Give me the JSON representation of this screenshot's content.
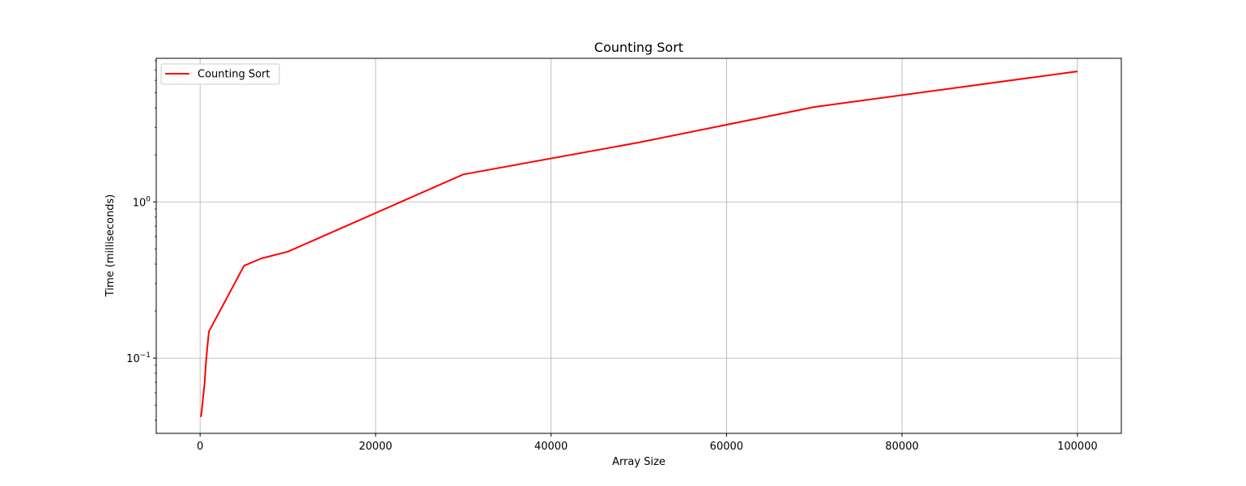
{
  "chart_data": {
    "type": "line",
    "title": "Counting Sort",
    "xlabel": "Array Size",
    "ylabel": "Time (milliseconds)",
    "xlim": [
      -5000,
      105000
    ],
    "ylim": [
      0.033,
      8.3
    ],
    "yscale": "log",
    "grid": true,
    "legend": "upper-left",
    "color": "#ff0000",
    "x_ticks": [
      {
        "value": 0,
        "label": "0"
      },
      {
        "value": 20000,
        "label": "20000"
      },
      {
        "value": 40000,
        "label": "40000"
      },
      {
        "value": 60000,
        "label": "60000"
      },
      {
        "value": 80000,
        "label": "80000"
      },
      {
        "value": 100000,
        "label": "100000"
      }
    ],
    "y_ticks": [
      {
        "value": 0.1,
        "base": "10",
        "exp": "−1"
      },
      {
        "value": 1,
        "base": "10",
        "exp": "0"
      }
    ],
    "series": [
      {
        "name": "Counting Sort",
        "x": [
          100,
          500,
          700,
          1000,
          5000,
          7000,
          10000,
          30000,
          50000,
          70000,
          100000
        ],
        "y": [
          0.042,
          0.068,
          0.1,
          0.148,
          0.39,
          0.435,
          0.48,
          1.5,
          2.4,
          4.05,
          6.85
        ]
      }
    ]
  }
}
